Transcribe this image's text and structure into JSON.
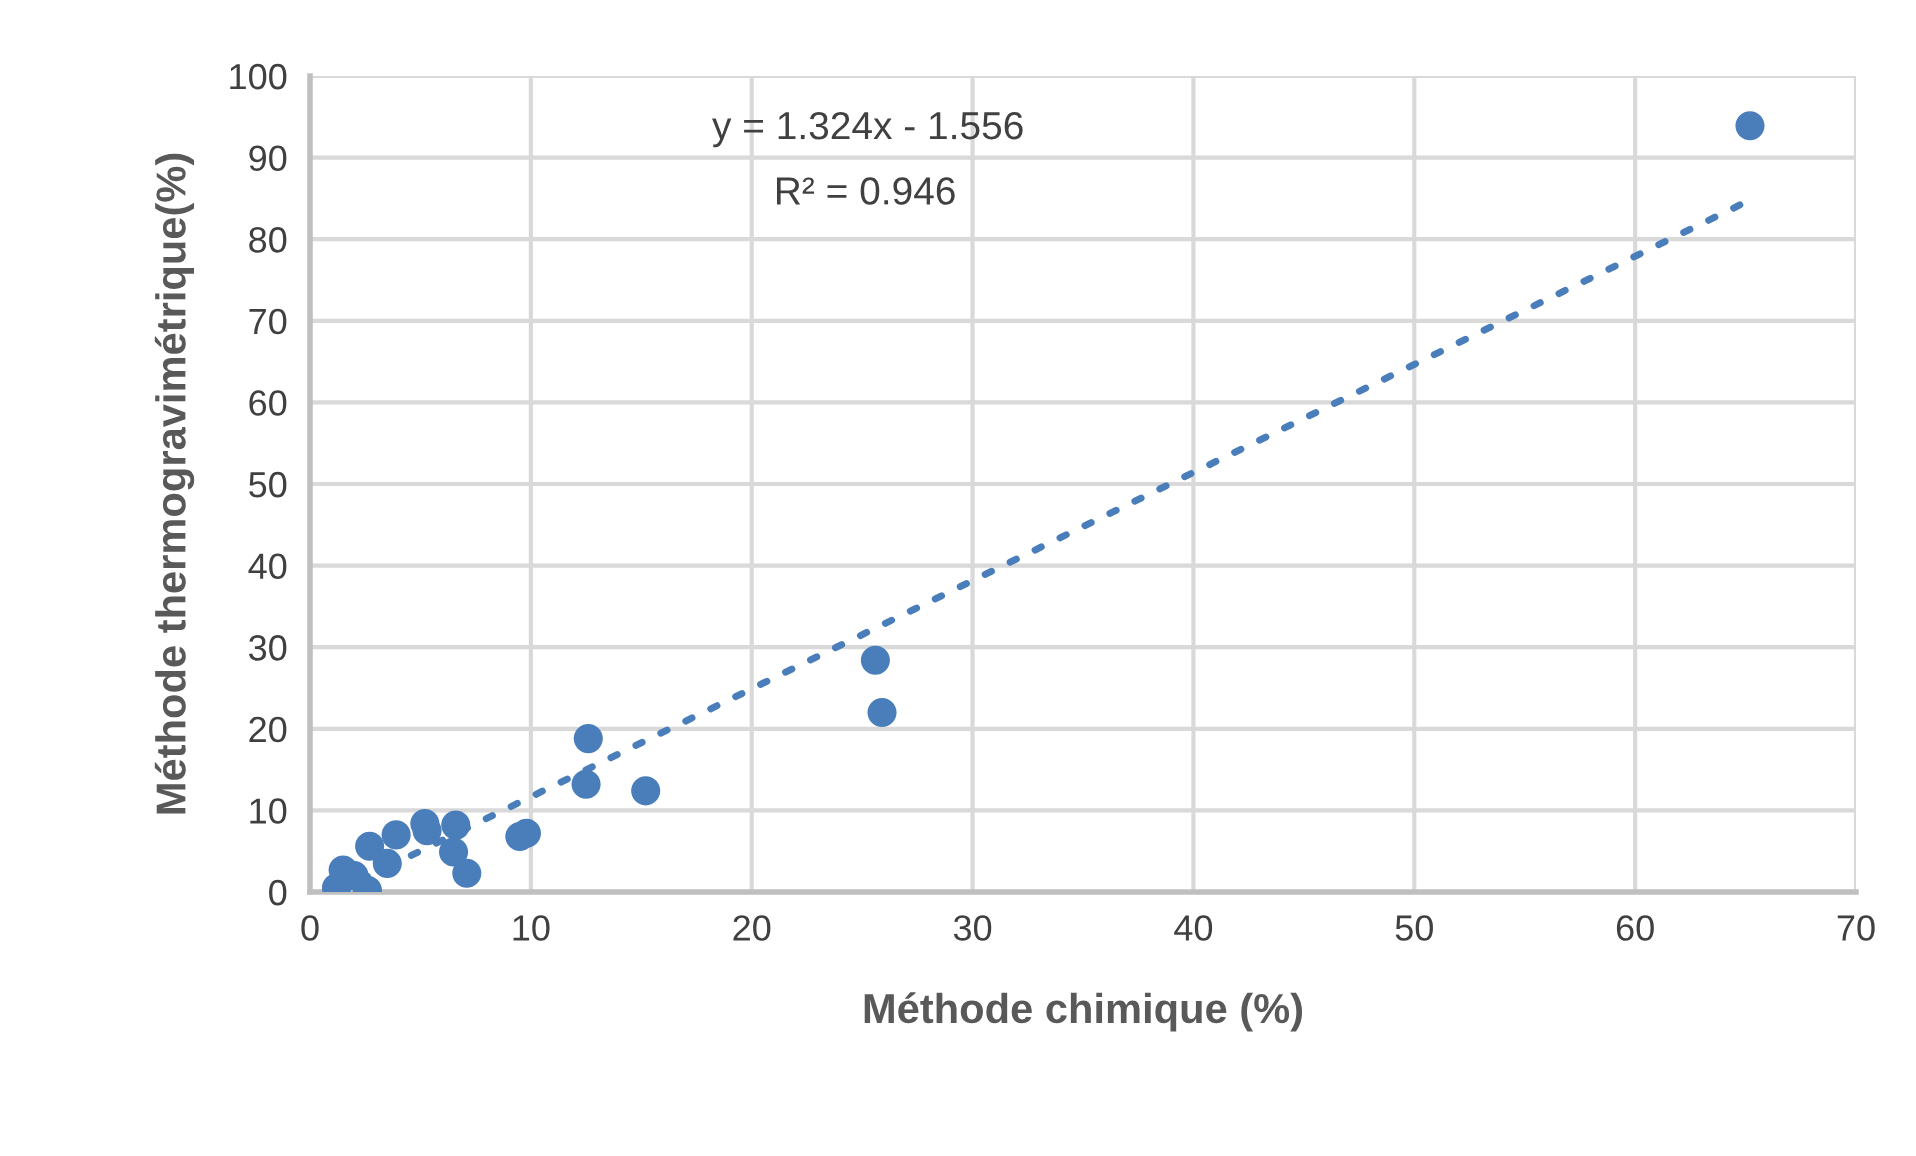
{
  "chart_data": {
    "type": "scatter",
    "xlabel": "Méthode chimique (%)",
    "ylabel": "Méthode thermogravimétrique(%)",
    "annotations": [
      "y = 1.324x - 1.556",
      "R² = 0.946"
    ],
    "xlim": [
      0,
      70
    ],
    "xticks": [
      0,
      10,
      20,
      30,
      40,
      50,
      60,
      70
    ],
    "ylim": [
      0,
      100
    ],
    "yticks": [
      0,
      10,
      20,
      30,
      40,
      50,
      60,
      70,
      80,
      90,
      100
    ],
    "grid": true,
    "series": [
      {
        "color": "#4a7ebb",
        "marker": "circle",
        "x": [
          1.2,
          1.5,
          2.0,
          2.6,
          2.7,
          3.5,
          3.9,
          5.2,
          5.3,
          6.6,
          6.5,
          7.1,
          9.5,
          9.8,
          12.6,
          12.5,
          15.2,
          25.6,
          25.9,
          65.2
        ],
        "values": [
          0.5,
          2.7,
          2.0,
          0.2,
          5.6,
          3.5,
          7.0,
          8.4,
          7.5,
          8.2,
          4.9,
          2.3,
          6.8,
          7.2,
          18.8,
          13.2,
          12.4,
          28.4,
          22.0,
          93.9
        ]
      },
      {
        "type": "line",
        "color": "#4a7ebb",
        "line_style": "dotted",
        "x": [
          1.2,
          65.2
        ],
        "values": [
          0,
          84.8
        ]
      }
    ]
  }
}
